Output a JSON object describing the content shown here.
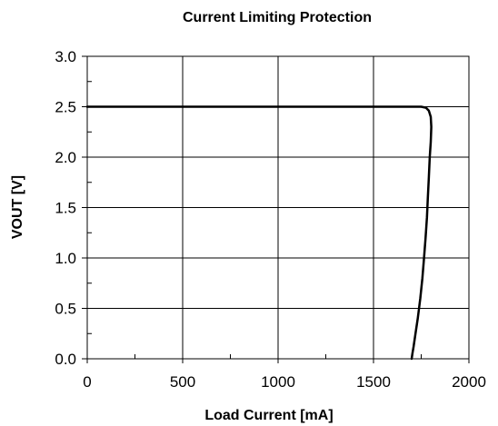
{
  "chart_data": {
    "type": "line",
    "title": "Current Limiting Protection",
    "xlabel": "Load Current [mA]",
    "ylabel": "VOUT [V]",
    "xlim": [
      0,
      2000
    ],
    "ylim": [
      0,
      3.0
    ],
    "x_ticks": [
      "0",
      "500",
      "1000",
      "1500",
      "2000"
    ],
    "y_ticks": [
      "0.0",
      "0.5",
      "1.0",
      "1.5",
      "2.0",
      "2.5",
      "3.0"
    ],
    "grid": true,
    "series": [
      {
        "x": [
          0,
          500,
          1000,
          1500,
          1700,
          1750,
          1775,
          1790,
          1800,
          1803,
          1800,
          1795,
          1790,
          1785,
          1780,
          1773,
          1765,
          1756,
          1745,
          1732,
          1720,
          1710,
          1704,
          1700
        ],
        "y": [
          2.5,
          2.5,
          2.5,
          2.5,
          2.5,
          2.5,
          2.49,
          2.46,
          2.4,
          2.3,
          2.15,
          2.0,
          1.8,
          1.6,
          1.4,
          1.2,
          1.0,
          0.8,
          0.6,
          0.4,
          0.25,
          0.12,
          0.05,
          0.0
        ],
        "color": "#000000"
      }
    ]
  }
}
